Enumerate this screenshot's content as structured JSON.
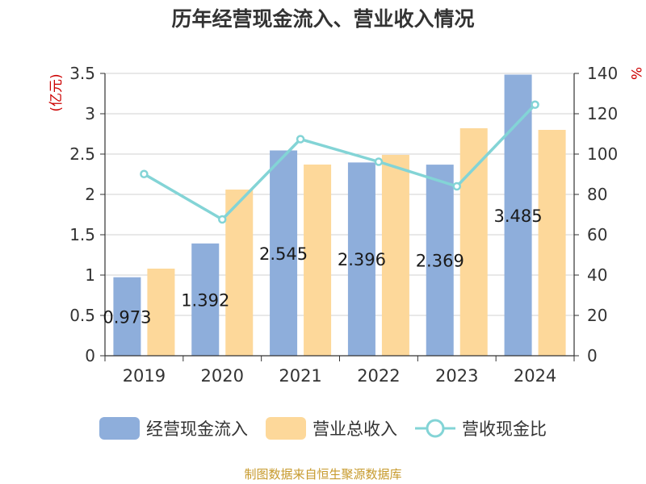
{
  "title": "历年经营现金流入、营业收入情况",
  "source": "制图数据来自恒生聚源数据库",
  "colors": {
    "cash_in": "#8eaedb",
    "revenue": "#fdd89a",
    "ratio": "#83d4d6",
    "axis_unit": "#cc0000",
    "source": "#c79a2c"
  },
  "chart_data": {
    "type": "bar",
    "categories": [
      "2019",
      "2020",
      "2021",
      "2022",
      "2023",
      "2024"
    ],
    "series": [
      {
        "name": "经营现金流入",
        "axis": "left",
        "values": [
          0.973,
          1.392,
          2.545,
          2.396,
          2.369,
          3.485
        ],
        "data_labels": [
          "0.973",
          "1.392",
          "2.545",
          "2.396",
          "2.369",
          "3.485"
        ]
      },
      {
        "name": "营业总收入",
        "axis": "left",
        "values": [
          1.08,
          2.06,
          2.37,
          2.49,
          2.82,
          2.8
        ]
      },
      {
        "name": "营收现金比",
        "axis": "right",
        "line": true,
        "values": [
          90.1,
          67.6,
          107.4,
          96.2,
          84.0,
          124.5
        ]
      }
    ],
    "y_left": {
      "label": "(亿元)",
      "range": [
        0,
        3.5
      ],
      "ticks": [
        "0",
        "0.5",
        "1",
        "1.5",
        "2",
        "2.5",
        "3",
        "3.5"
      ]
    },
    "y_right": {
      "label": "%",
      "range": [
        0,
        140
      ],
      "ticks": [
        "0",
        "20",
        "40",
        "60",
        "80",
        "100",
        "120",
        "140"
      ]
    },
    "grid": true,
    "legend_position": "bottom"
  }
}
